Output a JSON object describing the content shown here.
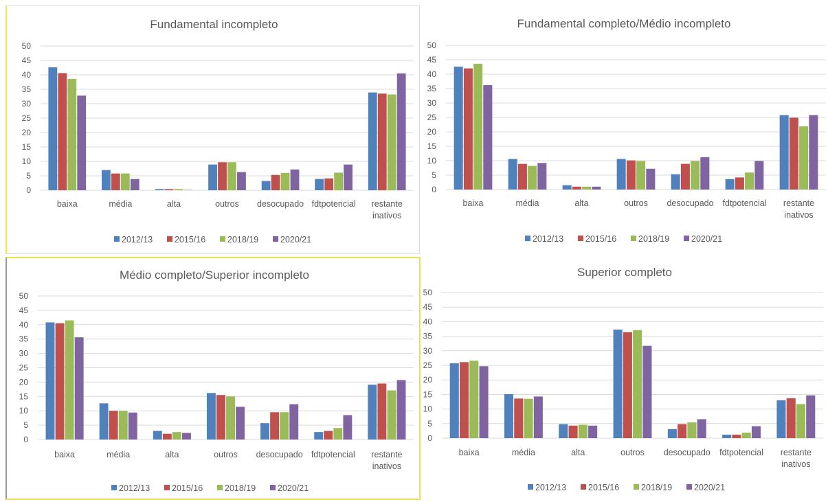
{
  "legend_colors": [
    "#4f81bd",
    "#c0504d",
    "#9bbb59",
    "#8064a2"
  ],
  "chart_data": [
    {
      "type": "bar",
      "title": "Fundamental incompleto",
      "categories": [
        "baixa",
        "média",
        "alta",
        "outros",
        "desocupado",
        "fdtpotencial",
        "restante inativos"
      ],
      "ylim": [
        0,
        50
      ],
      "yticks": [
        0,
        5,
        10,
        15,
        20,
        25,
        30,
        35,
        40,
        45,
        50
      ],
      "grid": true,
      "legend_position": "bottom",
      "series": [
        {
          "name": "2012/13",
          "values": [
            42.6,
            7.0,
            0.4,
            8.9,
            3.2,
            3.9,
            33.9
          ]
        },
        {
          "name": "2015/16",
          "values": [
            40.6,
            5.8,
            0.4,
            9.7,
            5.3,
            4.1,
            33.5
          ]
        },
        {
          "name": "2018/19",
          "values": [
            38.6,
            5.8,
            0.4,
            9.7,
            6.0,
            6.1,
            33.2
          ]
        },
        {
          "name": "2020/21",
          "values": [
            32.8,
            3.9,
            0.1,
            6.3,
            7.2,
            8.9,
            40.5
          ]
        }
      ]
    },
    {
      "type": "bar",
      "title": "Fundamental completo/Médio incompleto",
      "categories": [
        "baixa",
        "média",
        "alta",
        "outros",
        "desocupado",
        "fdtpotencial",
        "restante inativos"
      ],
      "ylim": [
        0,
        50
      ],
      "yticks": [
        0,
        5,
        10,
        15,
        20,
        25,
        30,
        35,
        40,
        45,
        50
      ],
      "grid": true,
      "legend_position": "bottom",
      "series": [
        {
          "name": "2012/13",
          "values": [
            42.6,
            10.6,
            1.5,
            10.6,
            5.3,
            3.6,
            25.8
          ]
        },
        {
          "name": "2015/16",
          "values": [
            42.0,
            8.9,
            1.0,
            10.1,
            8.9,
            4.2,
            24.9
          ]
        },
        {
          "name": "2018/19",
          "values": [
            43.6,
            8.2,
            1.0,
            9.9,
            9.9,
            5.9,
            21.9
          ]
        },
        {
          "name": "2020/21",
          "values": [
            36.2,
            9.2,
            1.0,
            7.2,
            11.2,
            9.9,
            25.8
          ]
        }
      ]
    },
    {
      "type": "bar",
      "title": "Médio completo/Superior incompleto",
      "categories": [
        "baixa",
        "média",
        "alta",
        "outros",
        "desocupado",
        "fdtpotencial",
        "restante inativos"
      ],
      "ylim": [
        0,
        50
      ],
      "yticks": [
        0,
        5,
        10,
        15,
        20,
        25,
        30,
        35,
        40,
        45,
        50
      ],
      "grid": true,
      "legend_position": "bottom",
      "series": [
        {
          "name": "2012/13",
          "values": [
            40.8,
            12.6,
            3.0,
            16.2,
            5.7,
            2.6,
            19.1
          ]
        },
        {
          "name": "2015/16",
          "values": [
            40.5,
            10.0,
            2.0,
            15.5,
            9.5,
            3.0,
            19.5
          ]
        },
        {
          "name": "2018/19",
          "values": [
            41.5,
            10.0,
            2.6,
            15.0,
            9.5,
            4.0,
            17.1
          ]
        },
        {
          "name": "2020/21",
          "values": [
            35.6,
            9.4,
            2.3,
            11.4,
            12.3,
            8.5,
            20.7
          ]
        }
      ]
    },
    {
      "type": "bar",
      "title": "Superior completo",
      "categories": [
        "baixa",
        "média",
        "alta",
        "outros",
        "desocupado",
        "fdtpotencial",
        "restante inativos"
      ],
      "ylim": [
        0,
        50
      ],
      "yticks": [
        0,
        5,
        10,
        15,
        20,
        25,
        30,
        35,
        40,
        45,
        50
      ],
      "grid": true,
      "legend_position": "bottom",
      "series": [
        {
          "name": "2012/13",
          "values": [
            25.7,
            15.1,
            4.8,
            37.3,
            3.1,
            1.2,
            13.0
          ]
        },
        {
          "name": "2015/16",
          "values": [
            26.1,
            13.6,
            4.3,
            36.4,
            4.8,
            1.2,
            13.7
          ]
        },
        {
          "name": "2018/19",
          "values": [
            26.6,
            13.5,
            4.6,
            37.1,
            5.4,
            1.9,
            11.7
          ]
        },
        {
          "name": "2020/21",
          "values": [
            24.7,
            14.3,
            4.3,
            31.7,
            6.5,
            4.1,
            14.7
          ]
        }
      ]
    }
  ]
}
